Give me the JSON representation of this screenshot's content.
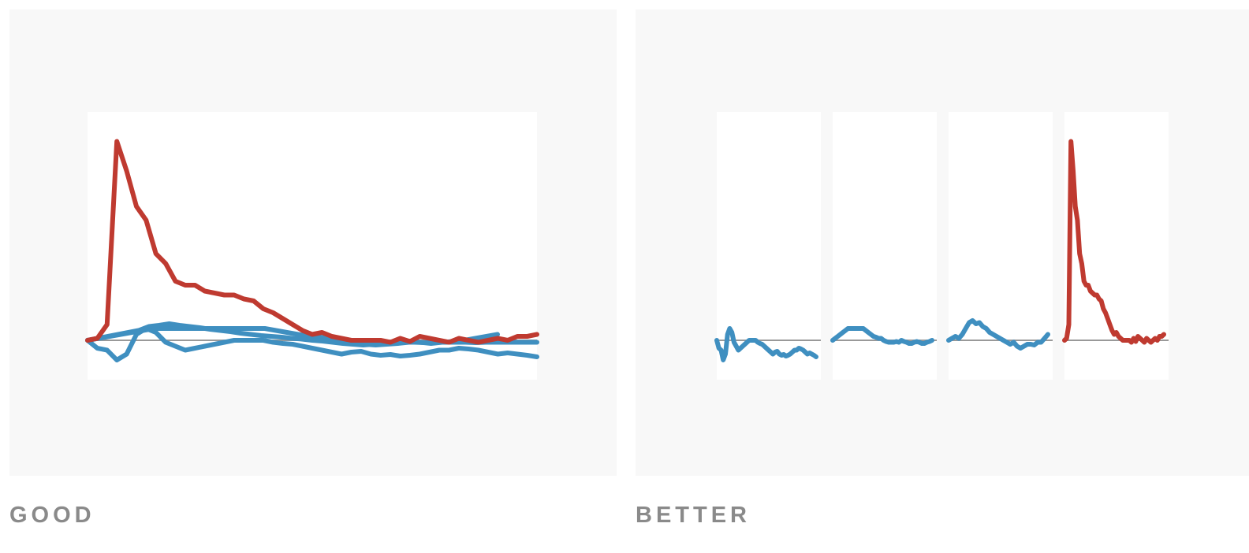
{
  "captions": {
    "left": "GOOD",
    "right": "BETTER"
  },
  "colors": {
    "highlight": "#bf3a30",
    "context": "#3f8fc0",
    "baseline": "#999999",
    "plot_bg": "#ffffff",
    "panel_bg": "#f8f8f8"
  },
  "chart_data": [
    {
      "type": "line",
      "layout": "overlaid",
      "ylim": [
        -1,
        5.8
      ],
      "baseline": 0,
      "series": [
        {
          "role": "context",
          "values": [
            0,
            -0.2,
            -0.25,
            -0.5,
            -0.35,
            0.15,
            0.3,
            0.2,
            -0.05,
            -0.15,
            -0.25,
            -0.2,
            -0.15,
            -0.1,
            -0.05,
            0,
            0,
            0,
            0,
            -0.05,
            -0.08,
            -0.1,
            -0.15,
            -0.2,
            -0.25,
            -0.3,
            -0.35,
            -0.3,
            -0.28,
            -0.35,
            -0.38,
            -0.36,
            -0.4,
            -0.38,
            -0.35,
            -0.3,
            -0.25,
            -0.25,
            -0.2,
            -0.22,
            -0.25,
            -0.3,
            -0.35,
            -0.32,
            -0.35,
            -0.38,
            -0.42
          ]
        },
        {
          "role": "context",
          "values": [
            0,
            0.05,
            0.1,
            0.15,
            0.2,
            0.25,
            0.3,
            0.3,
            0.3,
            0.3,
            0.3,
            0.3,
            0.3,
            0.3,
            0.3,
            0.3,
            0.3,
            0.25,
            0.2,
            0.15,
            0.1,
            0.08,
            0.05,
            0,
            -0.05,
            -0.1,
            -0.12,
            -0.1,
            -0.08,
            -0.05,
            -0.05,
            -0.08,
            -0.05,
            -0.03,
            0,
            0.05,
            0.1,
            0.15
          ]
        },
        {
          "role": "context",
          "values": [
            0,
            0.05,
            0.1,
            0.15,
            0.2,
            0.25,
            0.35,
            0.38,
            0.42,
            0.38,
            0.35,
            0.32,
            0.28,
            0.25,
            0.22,
            0.18,
            0.15,
            0.12,
            0.1,
            0.08,
            0.05,
            0.03,
            0,
            -0.02,
            -0.05,
            -0.08,
            -0.1,
            -0.12,
            -0.1,
            -0.08,
            -0.06,
            -0.05,
            -0.05,
            -0.06,
            -0.05,
            -0.05,
            -0.05,
            -0.05,
            -0.06,
            -0.05,
            -0.05,
            -0.05,
            -0.05,
            -0.05,
            -0.05
          ]
        },
        {
          "role": "highlight",
          "values": [
            0,
            0.05,
            0.4,
            5.05,
            4.3,
            3.4,
            3.05,
            2.2,
            1.95,
            1.5,
            1.4,
            1.4,
            1.25,
            1.2,
            1.15,
            1.15,
            1.05,
            1.0,
            0.8,
            0.7,
            0.55,
            0.4,
            0.25,
            0.15,
            0.2,
            0.1,
            0.05,
            0,
            0,
            0,
            0,
            -0.05,
            0.05,
            -0.03,
            0.1,
            0.05,
            0.0,
            -0.05,
            0.05,
            0.0,
            -0.05,
            0.0,
            0.05,
            0,
            0.1,
            0.1,
            0.15
          ]
        }
      ]
    },
    {
      "type": "line",
      "layout": "small-multiples",
      "ylim": [
        -1,
        5.8
      ],
      "baseline": 0,
      "series": [
        {
          "role": "context",
          "values": [
            0,
            -0.2,
            -0.25,
            -0.5,
            -0.35,
            0.15,
            0.3,
            0.2,
            -0.05,
            -0.15,
            -0.25,
            -0.2,
            -0.15,
            -0.1,
            -0.05,
            0,
            0,
            0,
            0,
            -0.05,
            -0.08,
            -0.1,
            -0.15,
            -0.2,
            -0.25,
            -0.3,
            -0.35,
            -0.3,
            -0.28,
            -0.35,
            -0.38,
            -0.36,
            -0.4,
            -0.38,
            -0.35,
            -0.3,
            -0.25,
            -0.25,
            -0.2,
            -0.22,
            -0.25,
            -0.3,
            -0.35,
            -0.32,
            -0.35,
            -0.38,
            -0.42
          ]
        },
        {
          "role": "context",
          "values": [
            0,
            0.05,
            0.1,
            0.15,
            0.2,
            0.25,
            0.3,
            0.3,
            0.3,
            0.3,
            0.3,
            0.3,
            0.3,
            0.25,
            0.2,
            0.15,
            0.1,
            0.08,
            0.05,
            0.05,
            0,
            -0.03,
            -0.05,
            -0.05,
            -0.05,
            -0.03,
            -0.05,
            0,
            -0.03,
            -0.05,
            -0.08,
            -0.08,
            -0.05,
            -0.03,
            -0.05,
            -0.08,
            -0.08,
            -0.05,
            -0.03,
            0
          ]
        },
        {
          "role": "context",
          "values": [
            0,
            0.05,
            0.1,
            0.05,
            0.15,
            0.3,
            0.45,
            0.5,
            0.42,
            0.45,
            0.35,
            0.3,
            0.2,
            0.15,
            0.1,
            0.05,
            0,
            -0.05,
            -0.1,
            -0.05,
            -0.15,
            -0.2,
            -0.15,
            -0.1,
            -0.1,
            -0.12,
            -0.05,
            -0.05,
            0.05,
            0.15
          ]
        },
        {
          "role": "highlight",
          "values": [
            0,
            0.05,
            0.4,
            5.05,
            4.3,
            3.4,
            3.05,
            2.2,
            1.95,
            1.5,
            1.4,
            1.4,
            1.25,
            1.2,
            1.15,
            1.15,
            1.05,
            1.0,
            0.8,
            0.7,
            0.55,
            0.4,
            0.25,
            0.15,
            0.2,
            0.1,
            0.05,
            0,
            0,
            0,
            0,
            -0.05,
            0.05,
            -0.03,
            0.1,
            0.05,
            0.0,
            -0.05,
            0.05,
            0.0,
            -0.05,
            0.0,
            0.05,
            0,
            0.1,
            0.1,
            0.15
          ]
        }
      ]
    }
  ]
}
